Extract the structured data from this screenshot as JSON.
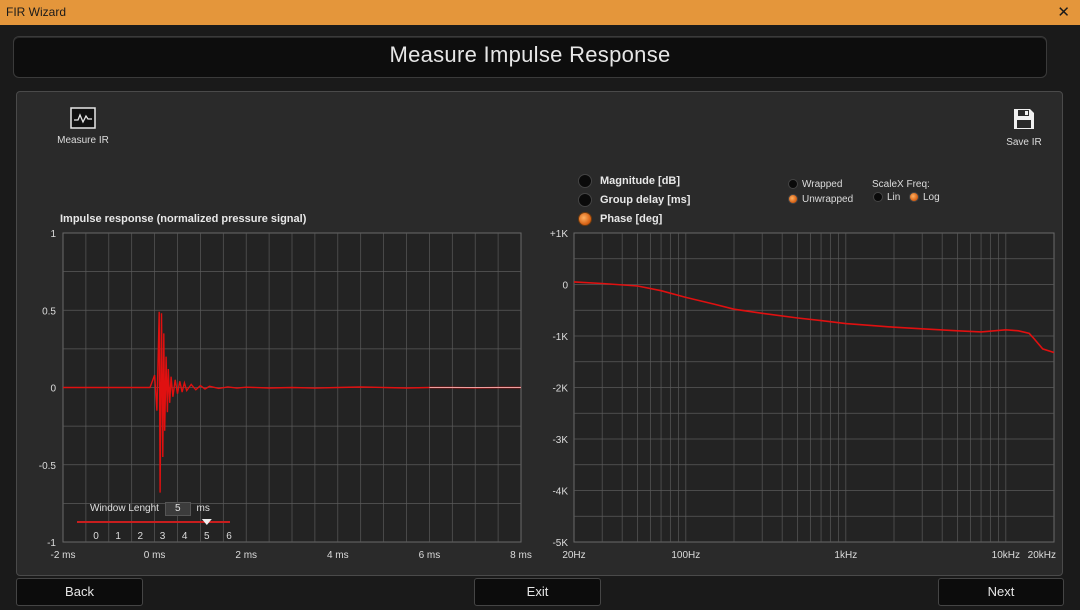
{
  "window": {
    "title": "FIR Wizard",
    "close_glyph": "✕"
  },
  "header": {
    "title": "Measure Impulse Response"
  },
  "toolbar": {
    "measure_ir": {
      "label": "Measure IR",
      "icon": "waveform-icon"
    },
    "save_ir": {
      "label": "Save IR",
      "icon": "floppy-disk-icon"
    }
  },
  "impulse_panel": {
    "title": "Impulse response (normalized pressure signal)",
    "window_length": {
      "label": "Window Lenght",
      "value": "5",
      "unit": "ms",
      "scale": [
        "0",
        "1",
        "2",
        "3",
        "4",
        "5",
        "6"
      ],
      "slider_value": 5
    }
  },
  "response_panel": {
    "modes": [
      {
        "label": "Magnitude [dB]",
        "selected": false
      },
      {
        "label": "Group delay [ms]",
        "selected": false
      },
      {
        "label": "Phase [deg]",
        "selected": true
      }
    ],
    "wrap_options": [
      {
        "label": "Wrapped",
        "selected": false
      },
      {
        "label": "Unwrapped",
        "selected": true
      }
    ],
    "scalex": {
      "label": "ScaleX Freq:",
      "options": [
        {
          "label": "Lin",
          "selected": false
        },
        {
          "label": "Log",
          "selected": true
        }
      ]
    }
  },
  "buttons": {
    "back": "Back",
    "exit": "Exit",
    "next": "Next"
  },
  "colors": {
    "accent": "#e4963b",
    "trace": "#e01010",
    "grid": "#5a5a5a",
    "plot_bg": "#232323"
  },
  "chart_data": [
    {
      "type": "line",
      "title": "Impulse response (normalized pressure signal)",
      "xlabel": "",
      "ylabel": "",
      "xlim": [
        -2,
        8
      ],
      "ylim": [
        -1,
        1
      ],
      "x_ticks": [
        "-2 ms",
        "0 ms",
        "2 ms",
        "4 ms",
        "6 ms",
        "8 ms"
      ],
      "y_ticks": [
        "1",
        "0.5",
        "0",
        "-0.5",
        "-1"
      ],
      "grid": true,
      "series": [
        {
          "x": [
            -2,
            -0.1,
            0,
            0.05,
            0.1,
            0.12,
            0.15,
            0.18,
            0.2,
            0.22,
            0.25,
            0.28,
            0.3,
            0.33,
            0.36,
            0.4,
            0.45,
            0.5,
            0.55,
            0.6,
            0.65,
            0.7,
            0.8,
            0.9,
            1.0,
            1.1,
            1.2,
            1.4,
            1.6,
            1.8,
            2.0,
            2.5,
            3.0,
            3.5,
            4.0,
            4.5,
            5.0,
            5.5,
            6.0,
            6.5,
            7.0,
            7.5,
            8.0
          ],
          "y": [
            0,
            0,
            0.08,
            -0.15,
            0.49,
            -0.68,
            0.48,
            -0.45,
            0.35,
            -0.28,
            0.2,
            -0.16,
            0.12,
            -0.1,
            0.07,
            -0.06,
            0.05,
            -0.04,
            0.04,
            -0.03,
            0.03,
            -0.02,
            0.02,
            -0.015,
            0.012,
            -0.01,
            0.008,
            -0.006,
            0.004,
            -0.004,
            0.002,
            -0.003,
            0,
            -0.004,
            0,
            0.003,
            0,
            -0.003,
            0,
            0,
            -0.002,
            0,
            0
          ]
        }
      ]
    },
    {
      "type": "line",
      "title": "",
      "xlabel": "",
      "ylabel": "",
      "xscale": "log",
      "xlim": [
        20,
        20000
      ],
      "ylim": [
        -5000,
        1000
      ],
      "x_ticks": [
        "20Hz",
        "100Hz",
        "1kHz",
        "10kHz",
        "20kHz"
      ],
      "y_ticks": [
        "+1K",
        "0",
        "-1K",
        "-2K",
        "-3K",
        "-4K",
        "-5K"
      ],
      "grid": true,
      "series": [
        {
          "x": [
            20,
            30,
            50,
            70,
            100,
            150,
            200,
            300,
            500,
            700,
            1000,
            1500,
            2000,
            3000,
            5000,
            7000,
            10000,
            12000,
            14000,
            15000,
            17000,
            20000
          ],
          "y": [
            50,
            20,
            -30,
            -120,
            -250,
            -380,
            -480,
            -560,
            -650,
            -700,
            -760,
            -800,
            -830,
            -860,
            -900,
            -920,
            -880,
            -900,
            -950,
            -1050,
            -1250,
            -1320
          ]
        }
      ]
    }
  ]
}
